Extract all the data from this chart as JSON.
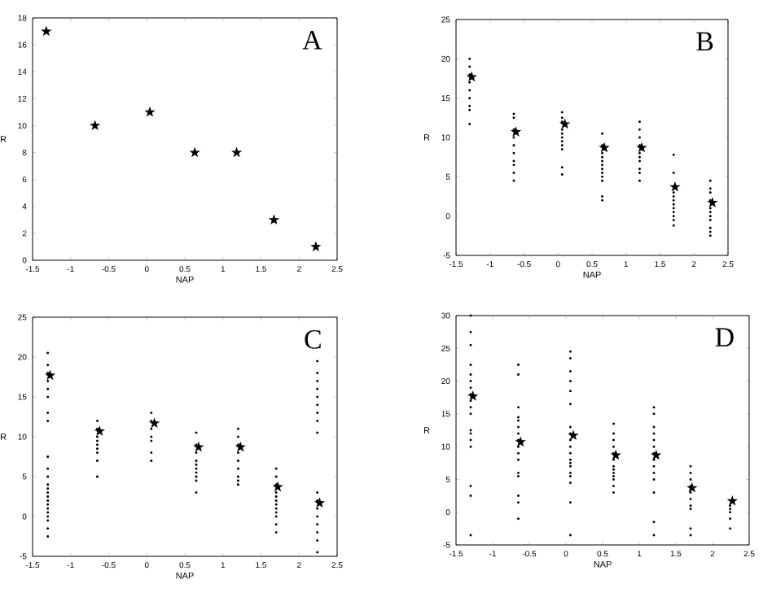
{
  "chart_data": [
    {
      "type": "scatter",
      "xlabel": "NAP",
      "ylabel": "R",
      "annotations": [
        "A"
      ],
      "xlim": [
        -1.5,
        2.5
      ],
      "ylim": [
        0,
        18
      ],
      "xticks": [
        -1.5,
        -1,
        -0.5,
        0,
        0.5,
        1,
        1.5,
        2,
        2.5
      ],
      "yticks": [
        0,
        2,
        4,
        6,
        8,
        10,
        12,
        14,
        16,
        18
      ],
      "series": [
        {
          "color": "#000000",
          "marker": "star",
          "x": [
            -1.32,
            -0.68,
            0.04,
            0.63,
            1.18,
            1.67,
            2.22
          ],
          "values": [
            17,
            10,
            11,
            8,
            8,
            3,
            1
          ]
        }
      ]
    },
    {
      "type": "scatter",
      "xlabel": "NAP",
      "ylabel": "R",
      "annotations": [
        "B"
      ],
      "xlim": [
        -1.5,
        2.5
      ],
      "ylim": [
        -5,
        25
      ],
      "xticks": [
        -1.5,
        -1,
        -0.5,
        0,
        0.5,
        1,
        1.5,
        2,
        2.5
      ],
      "yticks": [
        -5,
        0,
        5,
        10,
        15,
        20,
        25
      ],
      "series": [
        {
          "color": "#000000",
          "marker": "circle",
          "x": [
            -1.3,
            -1.3,
            -1.3,
            -1.3,
            -1.3,
            -1.3,
            -1.3,
            -1.3,
            -1.3,
            -0.65,
            -0.65,
            -0.65,
            -0.65,
            -0.65,
            -0.65,
            -0.65,
            -0.65,
            -0.65,
            -0.65,
            0.06,
            0.06,
            0.06,
            0.06,
            0.06,
            0.06,
            0.06,
            0.06,
            0.06,
            0.06,
            0.06,
            0.65,
            0.65,
            0.65,
            0.65,
            0.65,
            0.65,
            0.65,
            0.65,
            0.65,
            0.65,
            0.65,
            0.65,
            1.2,
            1.2,
            1.2,
            1.2,
            1.2,
            1.2,
            1.2,
            1.2,
            1.2,
            1.2,
            1.7,
            1.7,
            1.7,
            1.7,
            1.7,
            1.7,
            1.7,
            1.7,
            1.7,
            1.7,
            1.7,
            1.7,
            2.24,
            2.24,
            2.24,
            2.24,
            2.24,
            2.24,
            2.24,
            2.24,
            2.24,
            2.24,
            2.24
          ],
          "values": [
            11.7,
            13.5,
            14,
            15,
            16,
            17,
            18,
            19,
            20,
            4.5,
            5.5,
            6.5,
            7,
            8,
            9,
            10,
            11,
            12.5,
            13,
            5.3,
            6.2,
            8.5,
            9,
            9.5,
            10,
            10.5,
            11,
            12,
            12.5,
            13.2,
            2,
            2.5,
            4.5,
            5,
            5.5,
            6,
            6.5,
            7,
            7.5,
            8,
            9,
            10.5,
            4.5,
            5.5,
            6,
            7,
            7.5,
            8,
            9,
            10,
            11,
            12,
            -1.2,
            -0.5,
            0,
            0.5,
            1,
            1.5,
            2,
            2.5,
            3,
            3.5,
            5.5,
            7.8,
            -2.5,
            -2,
            -1.5,
            -0.5,
            0,
            0.5,
            1,
            2,
            3,
            3.5,
            4.5
          ]
        },
        {
          "color": "#000000",
          "marker": "star",
          "x": [
            -1.27,
            -0.62,
            0.1,
            0.68,
            1.23,
            1.72,
            2.27
          ],
          "values": [
            17.7,
            10.7,
            11.7,
            8.7,
            8.7,
            3.7,
            1.7
          ]
        }
      ]
    },
    {
      "type": "scatter",
      "xlabel": "NAP",
      "ylabel": "R",
      "annotations": [
        "C"
      ],
      "xlim": [
        -1.5,
        2.5
      ],
      "ylim": [
        -5,
        25
      ],
      "xticks": [
        -1.5,
        -1,
        -0.5,
        0,
        0.5,
        1,
        1.5,
        2,
        2.5
      ],
      "yticks": [
        -5,
        0,
        5,
        10,
        15,
        20,
        25
      ],
      "series": [
        {
          "color": "#000000",
          "marker": "circle",
          "x": [
            -1.3,
            -1.3,
            -1.3,
            -1.3,
            -1.3,
            -1.3,
            -1.3,
            -1.3,
            -1.3,
            -1.3,
            -1.3,
            -1.3,
            -1.3,
            -1.3,
            -1.3,
            -1.3,
            -1.3,
            -1.3,
            -1.3,
            -1.3,
            -1.3,
            -1.3,
            -1.3,
            -0.65,
            -0.65,
            -0.65,
            -0.65,
            -0.65,
            -0.65,
            -0.65,
            -0.65,
            -0.65,
            0.06,
            0.06,
            0.06,
            0.06,
            0.06,
            0.06,
            0.06,
            0.65,
            0.65,
            0.65,
            0.65,
            0.65,
            0.65,
            0.65,
            0.65,
            0.65,
            0.65,
            1.2,
            1.2,
            1.2,
            1.2,
            1.2,
            1.2,
            1.2,
            1.2,
            1.2,
            1.7,
            1.7,
            1.7,
            1.7,
            1.7,
            1.7,
            1.7,
            1.7,
            1.7,
            1.7,
            1.7,
            1.7,
            2.24,
            2.24,
            2.24,
            2.24,
            2.24,
            2.24,
            2.24,
            2.24,
            2.24,
            2.24,
            2.24,
            2.24,
            2.24,
            2.24,
            2.24,
            2.24,
            2.24
          ],
          "values": [
            -2.5,
            -1.5,
            -0.5,
            0,
            0.5,
            1,
            1.5,
            2,
            2.5,
            3,
            3.5,
            4,
            5,
            6,
            7.5,
            12,
            13,
            15,
            16,
            17,
            18,
            19,
            20.5,
            5,
            7,
            8,
            8.5,
            9,
            9.5,
            10,
            11,
            12,
            7,
            8,
            9.5,
            10,
            11,
            12,
            13,
            3,
            4.5,
            5,
            5.5,
            6,
            6.5,
            7,
            8,
            9,
            10.5,
            4,
            4.5,
            5,
            6,
            7,
            8,
            9,
            10,
            11,
            -2,
            -1,
            0,
            0.5,
            1,
            1.5,
            2,
            2.5,
            3,
            4,
            5,
            6,
            -4.5,
            -3,
            -2,
            -1,
            0,
            1,
            2,
            3,
            10.5,
            12,
            13,
            14,
            15,
            16,
            17,
            18,
            19.5
          ]
        },
        {
          "color": "#000000",
          "marker": "star",
          "x": [
            -1.27,
            -0.62,
            0.1,
            0.68,
            1.23,
            1.72,
            2.27
          ],
          "values": [
            17.7,
            10.7,
            11.7,
            8.7,
            8.7,
            3.7,
            1.7
          ]
        }
      ]
    },
    {
      "type": "scatter",
      "xlabel": "NAP",
      "ylabel": "R",
      "annotations": [
        "D"
      ],
      "xlim": [
        -1.5,
        2.5
      ],
      "ylim": [
        -5,
        30
      ],
      "xticks": [
        -1.5,
        -1,
        -0.5,
        0,
        0.5,
        1,
        1.5,
        2,
        2.5
      ],
      "yticks": [
        -5,
        0,
        5,
        10,
        15,
        20,
        25,
        30
      ],
      "series": [
        {
          "color": "#000000",
          "marker": "circle",
          "x": [
            -1.3,
            -1.3,
            -1.3,
            -1.3,
            -1.3,
            -1.3,
            -1.3,
            -1.3,
            -1.3,
            -1.3,
            -1.3,
            -1.3,
            -1.3,
            -1.3,
            -1.3,
            -1.3,
            -1.3,
            -1.3,
            -0.65,
            -0.65,
            -0.65,
            -0.65,
            -0.65,
            -0.65,
            -0.65,
            -0.65,
            -0.65,
            -0.65,
            -0.65,
            -0.65,
            -0.65,
            -0.65,
            -0.65,
            -0.65,
            0.06,
            0.06,
            0.06,
            0.06,
            0.06,
            0.06,
            0.06,
            0.06,
            0.06,
            0.06,
            0.06,
            0.06,
            0.06,
            0.06,
            0.06,
            0.06,
            0.06,
            0.06,
            0.06,
            0.65,
            0.65,
            0.65,
            0.65,
            0.65,
            0.65,
            0.65,
            0.65,
            0.65,
            0.65,
            0.65,
            0.65,
            0.65,
            1.2,
            1.2,
            1.2,
            1.2,
            1.2,
            1.2,
            1.2,
            1.2,
            1.2,
            1.2,
            1.2,
            1.2,
            1.2,
            1.2,
            1.7,
            1.7,
            1.7,
            1.7,
            1.7,
            1.7,
            1.7,
            1.7,
            1.7,
            1.7,
            2.24,
            2.24,
            2.24,
            2.24,
            2.24
          ],
          "values": [
            -3.5,
            2.5,
            4,
            10,
            11,
            12,
            12.5,
            15,
            16,
            17,
            18,
            19,
            20,
            21,
            22.5,
            25.5,
            27.5,
            30,
            -1,
            1.5,
            2.5,
            5.5,
            6,
            8,
            9,
            10,
            11,
            12,
            13,
            14,
            14.5,
            16,
            21,
            22.5,
            -3.5,
            1.5,
            4.5,
            5.5,
            6,
            7,
            7.5,
            8,
            9,
            10,
            11,
            12,
            13,
            16.5,
            18.5,
            20,
            21.5,
            23.5,
            24.5,
            3,
            4,
            5,
            5.5,
            6,
            6.5,
            7,
            8,
            9,
            10,
            11,
            12,
            13.5,
            -3.5,
            -1.5,
            3,
            5,
            6,
            7,
            8,
            9,
            10,
            11,
            12,
            13,
            15,
            16,
            -3.5,
            -2.5,
            0.5,
            1,
            2,
            3,
            4,
            5,
            6,
            7,
            -2.5,
            -1,
            0,
            0.5,
            1
          ]
        },
        {
          "color": "#000000",
          "marker": "star",
          "x": [
            -1.27,
            -0.62,
            0.1,
            0.68,
            1.23,
            1.72,
            2.27
          ],
          "values": [
            17.7,
            10.7,
            11.7,
            8.7,
            8.7,
            3.7,
            1.7
          ]
        }
      ]
    }
  ]
}
